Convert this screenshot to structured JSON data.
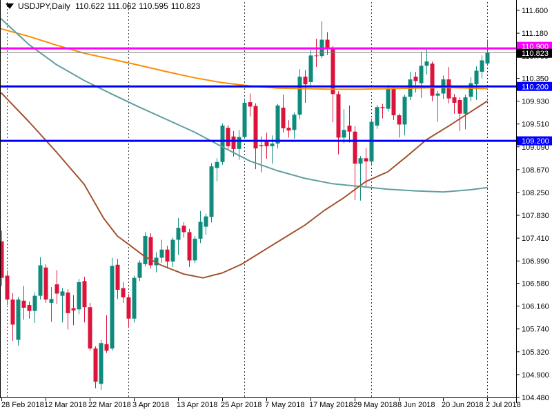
{
  "title": {
    "symbol_period": "USDJPY,Daily",
    "open": "110.622",
    "high": "111.062",
    "low": "110.595",
    "close": "110.823"
  },
  "colors": {
    "background": "#ffffff",
    "frame": "#000000",
    "text": "#000000",
    "bull_candle": "#0f8b7e",
    "bear_candle": "#dc143c",
    "magenta_level": "#ff00ff",
    "blue_level": "#0000ff",
    "current_price_line": "#808080",
    "current_price_box": "#000000",
    "ma_fast": "#ff8c00",
    "ma_slow": "#5f9ea0",
    "ma_mid": "#a0522d",
    "separator": "#333333",
    "box_text": "#ffffff"
  },
  "chart_data": {
    "type": "candlestick",
    "symbol": "USDJPY",
    "period": "Daily",
    "ylim": [
      104.48,
      111.6
    ],
    "bars_total": 89,
    "y_axis_labels": [
      "111.600",
      "111.180",
      "110.760",
      "110.350",
      "109.930",
      "109.510",
      "109.090",
      "108.670",
      "108.250",
      "107.830",
      "107.410",
      "106.990",
      "106.580",
      "106.160",
      "105.740",
      "105.320",
      "104.900",
      "104.480"
    ],
    "y_axis_values": [
      111.6,
      111.18,
      110.76,
      110.35,
      109.93,
      109.51,
      109.09,
      108.67,
      108.25,
      107.83,
      107.41,
      106.99,
      106.58,
      106.16,
      105.74,
      105.32,
      104.9,
      104.48
    ],
    "x_axis_labels": [
      {
        "text": "28 Feb 2018",
        "bar": 0
      },
      {
        "text": "12 Mar 2018",
        "bar": 8
      },
      {
        "text": "22 Mar 2018",
        "bar": 16
      },
      {
        "text": "3 Apr 2018",
        "bar": 24
      },
      {
        "text": "13 Apr 2018",
        "bar": 32
      },
      {
        "text": "25 Apr 2018",
        "bar": 40
      },
      {
        "text": "7 May 2018",
        "bar": 48
      },
      {
        "text": "17 May 2018",
        "bar": 56
      },
      {
        "text": "29 May 2018",
        "bar": 64
      },
      {
        "text": "8 Jun 2018",
        "bar": 72
      },
      {
        "text": "20 Jun 2018",
        "bar": 80
      },
      {
        "text": "2 Jul 2018",
        "bar": 88
      }
    ],
    "month_separator_bars": [
      1,
      23,
      44,
      67,
      88
    ],
    "horizontal_levels": [
      {
        "price": 110.9,
        "label": "110.900",
        "color_key": "magenta_level",
        "width": 3
      },
      {
        "price": 110.2,
        "label": "110.200",
        "color_key": "blue_level",
        "width": 3
      },
      {
        "price": 109.2,
        "label": "109.200",
        "color_key": "blue_level",
        "width": 3
      }
    ],
    "current_price": {
      "price": 110.823,
      "label": "110.823"
    },
    "candles_ohlc": [
      [
        107.35,
        107.55,
        106.53,
        106.68
      ],
      [
        106.72,
        106.82,
        106.18,
        106.28
      ],
      [
        106.28,
        106.4,
        105.52,
        105.82
      ],
      [
        105.54,
        106.33,
        105.43,
        106.28
      ],
      [
        106.26,
        106.53,
        105.91,
        106.13
      ],
      [
        106.18,
        106.24,
        105.93,
        106.07
      ],
      [
        106.07,
        106.41,
        105.85,
        106.35
      ],
      [
        106.35,
        107.06,
        106.28,
        106.91
      ],
      [
        106.87,
        106.93,
        106.22,
        106.28
      ],
      [
        106.22,
        106.51,
        105.87,
        106.29
      ],
      [
        106.56,
        106.82,
        106.2,
        106.39
      ],
      [
        106.35,
        106.49,
        105.86,
        106.43
      ],
      [
        106.41,
        106.47,
        105.73,
        106.03
      ],
      [
        106.12,
        106.36,
        105.81,
        106.08
      ],
      [
        106.1,
        106.66,
        106.01,
        106.6
      ],
      [
        106.62,
        106.7,
        105.86,
        106.14
      ],
      [
        106.14,
        106.22,
        105.34,
        105.38
      ],
      [
        105.38,
        105.42,
        104.65,
        104.77
      ],
      [
        104.73,
        105.54,
        104.62,
        105.48
      ],
      [
        105.46,
        105.99,
        105.3,
        105.34
      ],
      [
        105.38,
        107.05,
        105.34,
        106.9
      ],
      [
        106.92,
        107.03,
        106.29,
        106.46
      ],
      [
        106.49,
        106.6,
        106.22,
        106.32
      ],
      [
        106.32,
        106.38,
        105.76,
        105.93
      ],
      [
        105.93,
        106.72,
        105.86,
        106.68
      ],
      [
        106.68,
        107.0,
        106.62,
        106.96
      ],
      [
        106.93,
        107.52,
        106.89,
        107.45
      ],
      [
        107.43,
        107.5,
        106.85,
        106.91
      ],
      [
        106.91,
        107.15,
        106.78,
        107.05
      ],
      [
        107.05,
        107.38,
        106.96,
        107.2
      ],
      [
        107.2,
        107.27,
        106.85,
        106.98
      ],
      [
        106.98,
        107.42,
        106.88,
        107.38
      ],
      [
        107.38,
        107.78,
        107.1,
        107.6
      ],
      [
        107.64,
        107.7,
        107.42,
        107.52
      ],
      [
        107.52,
        107.58,
        106.88,
        107.0
      ],
      [
        107.0,
        107.45,
        106.95,
        107.4
      ],
      [
        107.4,
        107.91,
        107.32,
        107.71
      ],
      [
        107.62,
        107.86,
        107.47,
        107.81
      ],
      [
        107.8,
        108.79,
        107.7,
        108.73
      ],
      [
        108.7,
        108.88,
        108.46,
        108.81
      ],
      [
        108.81,
        109.52,
        108.76,
        109.48
      ],
      [
        109.44,
        109.49,
        109.02,
        109.1
      ],
      [
        109.28,
        109.38,
        108.91,
        109.05
      ],
      [
        109.05,
        109.4,
        108.85,
        109.27
      ],
      [
        109.27,
        109.98,
        109.24,
        109.9
      ],
      [
        109.91,
        110.07,
        109.65,
        109.83
      ],
      [
        109.84,
        109.89,
        108.68,
        109.06
      ],
      [
        109.12,
        109.28,
        108.62,
        109.1
      ],
      [
        109.18,
        109.35,
        108.87,
        109.1
      ],
      [
        109.1,
        109.3,
        108.78,
        109.15
      ],
      [
        109.15,
        109.88,
        109.06,
        109.85
      ],
      [
        109.81,
        110.05,
        109.35,
        109.43
      ],
      [
        109.44,
        109.58,
        109.26,
        109.39
      ],
      [
        109.4,
        109.72,
        109.24,
        109.68
      ],
      [
        109.68,
        110.52,
        109.6,
        110.38
      ],
      [
        110.38,
        110.5,
        109.9,
        110.24
      ],
      [
        110.28,
        110.88,
        110.2,
        110.77
      ],
      [
        110.77,
        111.08,
        110.56,
        110.76
      ],
      [
        110.76,
        111.4,
        110.72,
        111.06
      ],
      [
        111.06,
        111.2,
        110.78,
        110.9
      ],
      [
        110.9,
        110.94,
        109.54,
        110.06
      ],
      [
        110.06,
        110.11,
        108.95,
        109.26
      ],
      [
        109.26,
        109.78,
        109.15,
        109.4
      ],
      [
        109.48,
        109.85,
        109.17,
        109.37
      ],
      [
        109.37,
        109.47,
        108.11,
        108.78
      ],
      [
        108.78,
        108.92,
        108.1,
        108.88
      ],
      [
        108.88,
        109.07,
        108.36,
        108.82
      ],
      [
        108.82,
        109.61,
        108.76,
        109.55
      ],
      [
        109.48,
        109.86,
        109.42,
        109.82
      ],
      [
        109.82,
        109.88,
        109.61,
        109.8
      ],
      [
        109.79,
        110.23,
        109.74,
        110.16
      ],
      [
        110.17,
        110.2,
        109.58,
        109.67
      ],
      [
        109.67,
        109.7,
        109.26,
        109.5
      ],
      [
        109.5,
        110.05,
        109.3,
        110.01
      ],
      [
        110.01,
        110.47,
        109.95,
        110.33
      ],
      [
        110.38,
        110.47,
        110.09,
        110.3
      ],
      [
        110.26,
        110.84,
        109.99,
        110.58
      ],
      [
        110.58,
        110.9,
        110.42,
        110.66
      ],
      [
        110.62,
        110.66,
        109.93,
        110.03
      ],
      [
        110.03,
        110.12,
        109.55,
        110.07
      ],
      [
        110.07,
        110.4,
        109.97,
        110.33
      ],
      [
        110.33,
        110.56,
        109.89,
        109.98
      ],
      [
        110.0,
        110.06,
        109.7,
        109.9
      ],
      [
        109.95,
        110.0,
        109.38,
        109.7
      ],
      [
        109.7,
        110.05,
        109.41,
        110.0
      ],
      [
        110.01,
        110.37,
        109.93,
        110.26
      ],
      [
        110.24,
        110.57,
        109.95,
        110.49
      ],
      [
        110.47,
        110.77,
        110.35,
        110.68
      ],
      [
        110.622,
        111.062,
        110.595,
        110.823
      ]
    ],
    "moving_averages": [
      {
        "name": "ma-orange",
        "color_key": "ma_fast",
        "points": [
          [
            0,
            111.26
          ],
          [
            5,
            111.12
          ],
          [
            10,
            110.96
          ],
          [
            15,
            110.81
          ],
          [
            20,
            110.7
          ],
          [
            25,
            110.59
          ],
          [
            30,
            110.47
          ],
          [
            35,
            110.36
          ],
          [
            40,
            110.27
          ],
          [
            45,
            110.21
          ],
          [
            50,
            110.17
          ],
          [
            55,
            110.16
          ],
          [
            60,
            110.15
          ],
          [
            65,
            110.15
          ],
          [
            70,
            110.16
          ],
          [
            75,
            110.17
          ],
          [
            80,
            110.18
          ],
          [
            85,
            110.17
          ],
          [
            88,
            110.16
          ]
        ]
      },
      {
        "name": "ma-cadetblue",
        "color_key": "ma_slow",
        "points": [
          [
            0,
            111.44
          ],
          [
            5,
            110.97
          ],
          [
            10,
            110.6
          ],
          [
            15,
            110.31
          ],
          [
            20,
            110.06
          ],
          [
            25,
            109.82
          ],
          [
            30,
            109.59
          ],
          [
            35,
            109.36
          ],
          [
            40,
            109.09
          ],
          [
            45,
            108.83
          ],
          [
            50,
            108.65
          ],
          [
            55,
            108.51
          ],
          [
            60,
            108.41
          ],
          [
            65,
            108.36
          ],
          [
            70,
            108.31
          ],
          [
            75,
            108.28
          ],
          [
            80,
            108.26
          ],
          [
            85,
            108.3
          ],
          [
            88,
            108.34
          ]
        ]
      },
      {
        "name": "ma-brown",
        "color_key": "ma_mid",
        "points": [
          [
            0,
            110.08
          ],
          [
            5,
            109.55
          ],
          [
            10,
            108.99
          ],
          [
            15,
            108.4
          ],
          [
            18.5,
            107.78
          ],
          [
            21,
            107.45
          ],
          [
            23,
            107.3
          ],
          [
            26,
            107.07
          ],
          [
            29,
            106.91
          ],
          [
            33,
            106.75
          ],
          [
            36.5,
            106.68
          ],
          [
            40,
            106.77
          ],
          [
            43.5,
            106.93
          ],
          [
            47,
            107.15
          ],
          [
            51,
            107.4
          ],
          [
            55,
            107.65
          ],
          [
            58.5,
            107.92
          ],
          [
            62,
            108.15
          ],
          [
            66,
            108.45
          ],
          [
            70,
            108.63
          ],
          [
            73.5,
            108.92
          ],
          [
            77,
            109.22
          ],
          [
            81,
            109.47
          ],
          [
            84.5,
            109.7
          ],
          [
            88,
            109.93
          ]
        ]
      }
    ]
  }
}
